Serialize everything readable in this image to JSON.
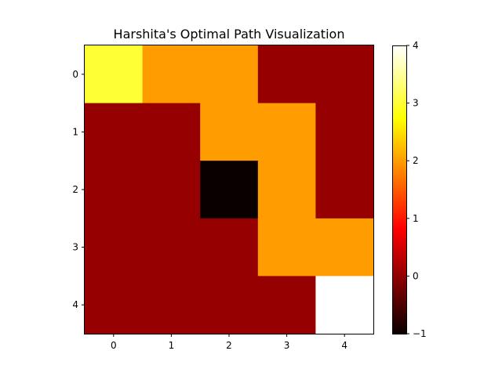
{
  "chart_data": {
    "type": "heatmap",
    "title": "Harshita's Optimal Path Visualization",
    "xlabel": "",
    "ylabel": "",
    "x_ticks": [
      "0",
      "1",
      "2",
      "3",
      "4"
    ],
    "y_ticks": [
      "0",
      "1",
      "2",
      "3",
      "4"
    ],
    "grid": [
      [
        3,
        2,
        2,
        0,
        0
      ],
      [
        0,
        0,
        2,
        2,
        0
      ],
      [
        0,
        0,
        -1,
        2,
        0
      ],
      [
        0,
        0,
        0,
        2,
        2
      ],
      [
        0,
        0,
        0,
        0,
        4
      ]
    ],
    "colormap": "hot",
    "vmin": -1,
    "vmax": 4,
    "colorbar_ticks": [
      {
        "value": -1,
        "label": "−1"
      },
      {
        "value": 0,
        "label": "0"
      },
      {
        "value": 1,
        "label": "1"
      },
      {
        "value": 2,
        "label": "2"
      },
      {
        "value": 3,
        "label": "3"
      },
      {
        "value": 4,
        "label": "4"
      }
    ],
    "colorbar_placement": "right"
  }
}
